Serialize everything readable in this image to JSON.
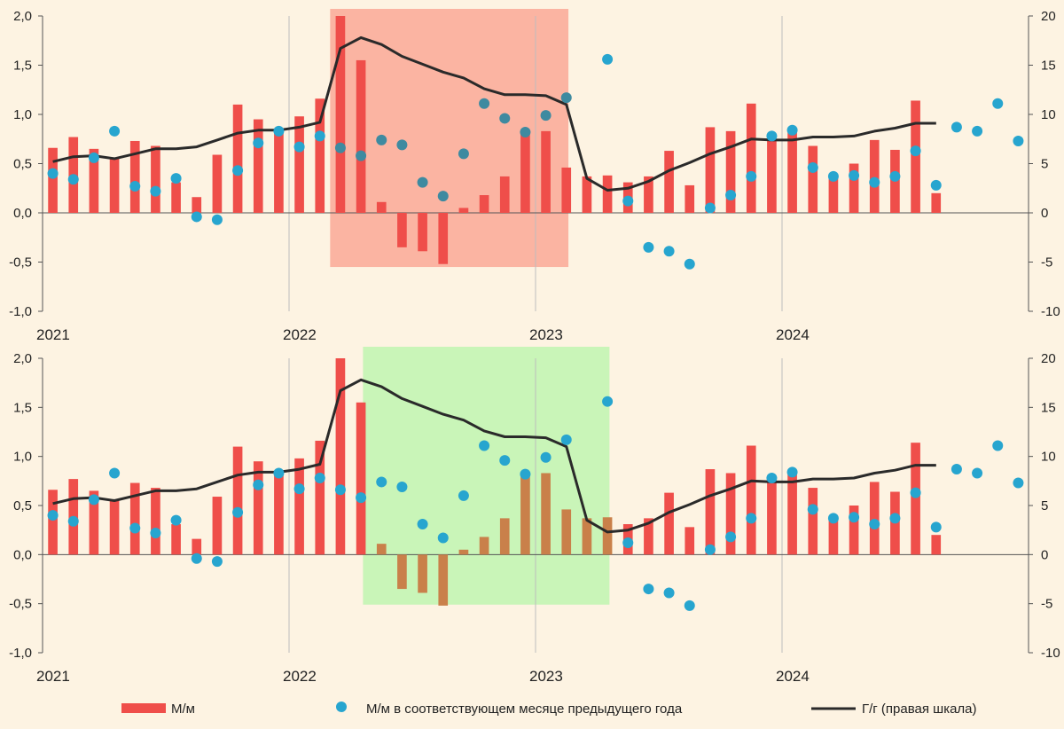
{
  "chart_data": {
    "type": "bar",
    "panels": [
      {
        "id": "top",
        "highlight": {
          "from_month": 14,
          "to_month": 25.6,
          "color": "#fbb4a2"
        }
      },
      {
        "id": "bottom",
        "highlight": {
          "from_month": 15.6,
          "to_month": 27.6,
          "color": "#c9f5b8"
        }
      }
    ],
    "x_tick_labels": [
      "2021",
      "2022",
      "2023",
      "2024"
    ],
    "left_axis": {
      "ylim": [
        -1.0,
        2.0
      ],
      "ticks": [
        "2,0",
        "1,5",
        "1,0",
        "0,5",
        "0,0",
        "-0,5",
        "-1,0"
      ]
    },
    "right_axis": {
      "ylim": [
        -10,
        20
      ],
      "ticks": [
        "20",
        "15",
        "10",
        "5",
        "0",
        "-5",
        "-10"
      ]
    },
    "legend": {
      "position": "bottom",
      "entries": [
        {
          "label": "М/м",
          "type": "bar"
        },
        {
          "label": "М/м в соответствующем месяце предыдущего года",
          "type": "scatter"
        },
        {
          "label": "Г/г (правая шкала)",
          "type": "line"
        }
      ]
    },
    "colors": {
      "bar": "#ef4e4a",
      "bar_highlight_bottom": "#c9804a",
      "dot": "#27a5cf",
      "line": "#2a2a2a"
    },
    "series": [
      {
        "name": "М/м",
        "type": "bar",
        "values": [
          0.66,
          0.77,
          0.65,
          0.56,
          0.73,
          0.68,
          0.31,
          0.16,
          0.59,
          1.1,
          0.95,
          0.82,
          0.98,
          1.16,
          2.0,
          1.55,
          0.11,
          -0.35,
          -0.39,
          -0.52,
          0.05,
          0.18,
          0.37,
          0.8,
          0.83,
          0.46,
          0.37,
          0.38,
          0.31,
          0.37,
          0.63,
          0.28,
          0.87,
          0.83,
          1.11,
          0.73,
          0.86,
          0.68,
          0.35,
          0.5,
          0.74,
          0.64,
          1.14,
          0.2
        ]
      },
      {
        "name": "М/м в соответствующем месяце предыдущего года",
        "type": "scatter",
        "values": [
          0.4,
          0.34,
          0.56,
          0.83,
          0.27,
          0.22,
          0.35,
          -0.04,
          -0.07,
          0.43,
          0.71,
          0.83,
          0.67,
          0.78,
          0.66,
          0.58,
          0.74,
          0.69,
          0.31,
          0.17,
          0.6,
          1.11,
          0.96,
          0.82,
          0.99,
          1.17,
          null,
          1.56,
          0.12,
          -0.35,
          -0.39,
          -0.52,
          0.05,
          0.18,
          0.37,
          0.78,
          0.84,
          0.46,
          0.37,
          0.38,
          0.31,
          0.37,
          0.63,
          0.28,
          0.87,
          0.83,
          1.11,
          0.73
        ]
      },
      {
        "name": "Г/г (правая шкала)",
        "type": "line",
        "values": [
          5.2,
          5.7,
          5.8,
          5.5,
          6.0,
          6.5,
          6.5,
          6.7,
          7.4,
          8.1,
          8.4,
          8.4,
          8.7,
          9.2,
          16.7,
          17.8,
          17.1,
          15.9,
          15.1,
          14.3,
          13.7,
          12.6,
          12.0,
          12.0,
          11.9,
          11.0,
          3.5,
          2.3,
          2.5,
          3.2,
          4.3,
          5.1,
          6.0,
          6.7,
          7.5,
          7.4,
          7.4,
          7.7,
          7.7,
          7.8,
          8.3,
          8.6,
          9.1,
          9.1
        ]
      }
    ]
  }
}
